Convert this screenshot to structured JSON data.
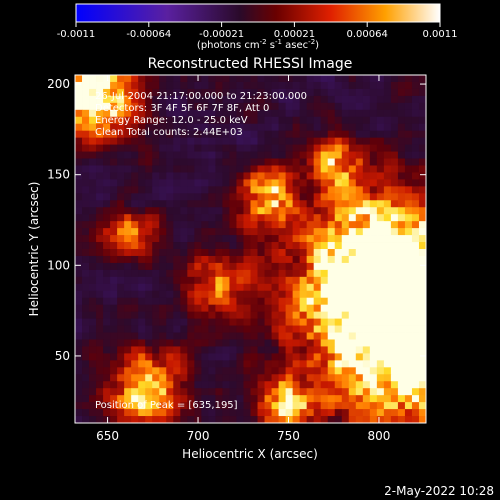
{
  "colors": {
    "background": "#000000",
    "foreground": "#ffffff"
  },
  "colorbar": {
    "ticks": [
      "-0.0011",
      "-0.00064",
      "-0.00021",
      "0.00021",
      "0.00064",
      "0.0011"
    ],
    "unit_label": "(photons cm-2 s-1 asec-2)",
    "unit_parts": {
      "pre": "(photons cm",
      "e1": "-2",
      "mid1": " s",
      "e2": "-1",
      "mid2": " asec",
      "e3": "-2",
      "post": ")"
    },
    "range": [
      -0.0011,
      0.0011
    ]
  },
  "chart_data": {
    "type": "heatmap",
    "title": "Reconstructed RHESSI Image",
    "xlabel": "Heliocentric X (arcsec)",
    "ylabel": "Heliocentric Y (arcsec)",
    "xlim": [
      632,
      826
    ],
    "ylim": [
      13,
      205
    ],
    "xticks": [
      650,
      700,
      750,
      800
    ],
    "yticks": [
      50,
      100,
      150,
      200
    ],
    "peak_value": 0.0011,
    "annotations": [
      "26-Jul-2004 21:17:00.000 to 21:23:00.000",
      "Detectors: 3F 4F 5F 6F 7F 8F, Att 0",
      "Energy Range: 12.0 - 25.0 keV",
      "Clean     Total counts: 2.44E+03"
    ],
    "peak_label": "Position of Peak = [635,195]",
    "peak_position": [
      635,
      195
    ]
  },
  "footer": {
    "date": "2-May-2022 10:28"
  }
}
